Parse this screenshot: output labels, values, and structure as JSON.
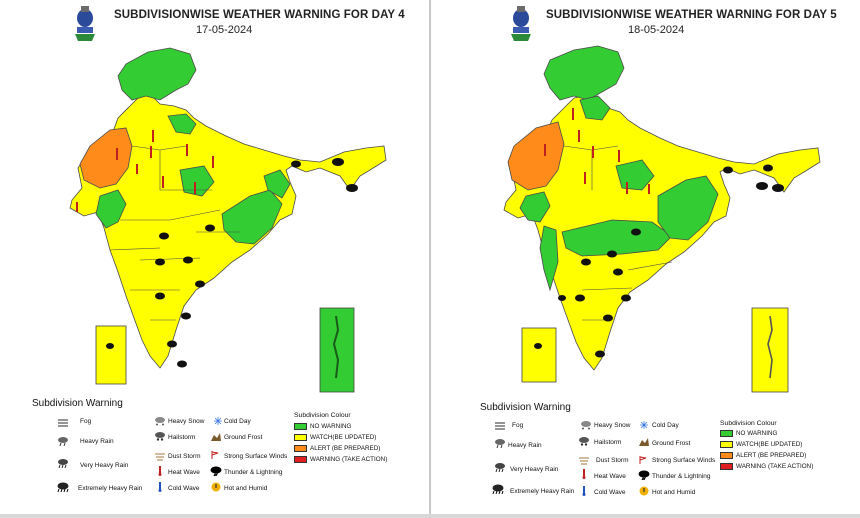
{
  "colors": {
    "no_warning": "#33cc33",
    "watch": "#ffff00",
    "alert": "#ff8c1a",
    "warning": "#e02020"
  },
  "panels": [
    {
      "title": "SUBDIVISIONWISE WEATHER WARNING FOR DAY 4",
      "date": "17-05-2024"
    },
    {
      "title": "SUBDIVISIONWISE WEATHER WARNING FOR DAY 5",
      "date": "18-05-2024"
    }
  ],
  "legend": {
    "title": "Subdivision Warning",
    "col1": [
      "Fog",
      "Heavy Rain",
      "Very Heavy Rain",
      "Extremely Heavy Rain"
    ],
    "col2": [
      "Heavy Snow",
      "Hailstorm",
      "Dust Storm",
      "Heat Wave",
      "Cold Wave"
    ],
    "col3": [
      "Cold Day",
      "Ground Frost",
      "Strong Surface Winds",
      "Thunder & Lightning",
      "Hot and Humid"
    ],
    "col1_icons": [
      "fog-icon",
      "heavy-rain-icon",
      "very-heavy-rain-icon",
      "extremely-heavy-rain-icon"
    ],
    "col2_icons": [
      "heavy-snow-icon",
      "hailstorm-icon",
      "dust-storm-icon",
      "heat-wave-icon",
      "cold-wave-icon"
    ],
    "col3_icons": [
      "cold-day-icon",
      "ground-frost-icon",
      "strong-surface-winds-icon",
      "thunder-lightning-icon",
      "hot-humid-icon"
    ]
  },
  "subdivision_colour": {
    "title": "Subdivision Colour",
    "day4_labels": [
      "NO WARNING",
      "WATCH(BE UPDATED)",
      "ALERT (BE PREPARED)",
      "WARNING (TAKE ACTION)"
    ],
    "day5_labels": [
      "NO WARNING",
      "WATCH(BE UPDATED)",
      "ALERT (BE PREPARED)",
      "WARNING (TAKE ACTION)"
    ]
  }
}
